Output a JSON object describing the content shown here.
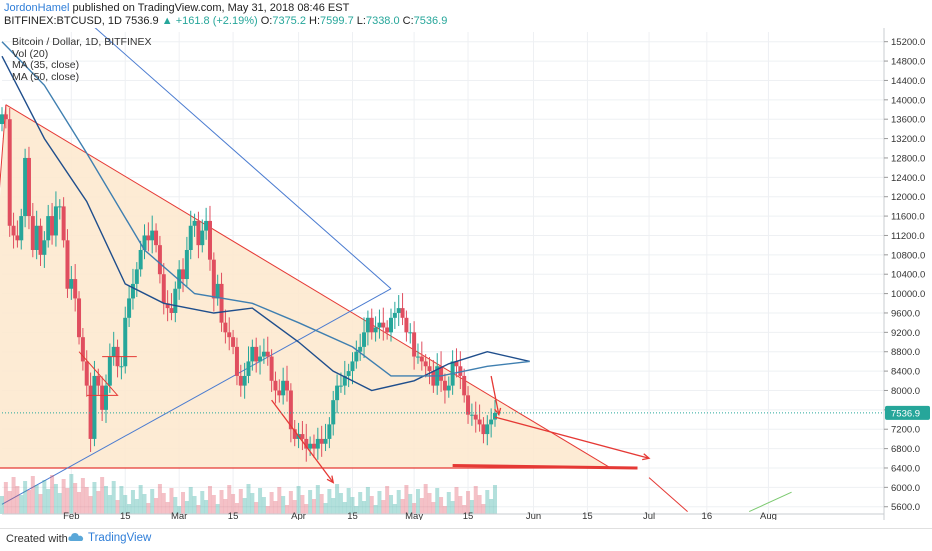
{
  "header": {
    "author": "JordonHamel",
    "published": "published on TradingView.com, May 31, 2018 08:46 EST",
    "symbol": "BITFINEX:BTCUSD, 1D",
    "last": "7536.9",
    "change": "▲ +161.8 (+2.19%)",
    "o_label": "O:",
    "o": "7375.2",
    "h_label": "H:",
    "h": "7599.7",
    "l_label": "L:",
    "l": "7338.0",
    "c_label": "C:",
    "c": "7536.9"
  },
  "legend": {
    "title": "Bitcoin / Dollar, 1D, BITFINEX",
    "vol": "Vol (20)",
    "ma35": "MA (35, close)",
    "ma50": "MA (50, close)"
  },
  "footer": {
    "created": "Created with",
    "brand": "TradingView"
  },
  "colors": {
    "up": "#26a69a",
    "down": "#e04e5f",
    "triangle_fill": "#fde8cd",
    "ma35": "#1f4e8c",
    "ma50": "#3f7fb0",
    "drawing_red": "#e53935",
    "drawing_blue": "#4a7bd0",
    "price_tag": "#26a69a"
  },
  "chart_data": {
    "type": "candlestick",
    "title": "Bitcoin / Dollar, 1D, BITFINEX",
    "yticks": [
      5600,
      6000,
      6400,
      6800,
      7200,
      7600,
      8000,
      8400,
      8800,
      9200,
      9600,
      10000,
      10400,
      10800,
      11200,
      11600,
      12000,
      12400,
      12800,
      13200,
      13600,
      14000,
      14400,
      14800,
      15200
    ],
    "ytick_labels": [
      "5600.0",
      "6000.0",
      "6400.0",
      "6800.0",
      "7200.0",
      "7600.0",
      "8000.0",
      "8400.0",
      "8800.0",
      "9200.0",
      "9600.0",
      "10000.0",
      "10400.0",
      "10800.0",
      "11200.0",
      "11600.0",
      "12000.0",
      "12400.0",
      "12800.0",
      "13200.0",
      "13600.0",
      "14000.0",
      "14400.0",
      "14800.0",
      "15200.0"
    ],
    "ylim": [
      5450,
      15400
    ],
    "xlim": [
      "2018-01-14",
      "2018-08-31"
    ],
    "xticks": [
      {
        "label": "Feb",
        "date": "2018-02-01"
      },
      {
        "label": "15",
        "date": "2018-02-15"
      },
      {
        "label": "Mar",
        "date": "2018-03-01"
      },
      {
        "label": "15",
        "date": "2018-03-15"
      },
      {
        "label": "Apr",
        "date": "2018-04-01"
      },
      {
        "label": "15",
        "date": "2018-04-15"
      },
      {
        "label": "May",
        "date": "2018-05-01"
      },
      {
        "label": "15",
        "date": "2018-05-15"
      },
      {
        "label": "Jun",
        "date": "2018-06-01"
      },
      {
        "label": "15",
        "date": "2018-06-15"
      },
      {
        "label": "Jul",
        "date": "2018-07-01"
      },
      {
        "label": "16",
        "date": "2018-07-16"
      },
      {
        "label": "Aug",
        "date": "2018-08-01"
      }
    ],
    "last_price": 7536.9,
    "last_price_label": "7536.9",
    "candles_start": "2018-01-14",
    "closes": [
      13700,
      13600,
      11400,
      11200,
      11100,
      11600,
      12800,
      11600,
      10900,
      11400,
      10800,
      11100,
      11600,
      11200,
      11800,
      11800,
      11100,
      10100,
      10300,
      9900,
      9100,
      8600,
      8100,
      7000,
      8300,
      8100,
      7600,
      8100,
      8700,
      8900,
      8500,
      8500,
      9500,
      9900,
      10200,
      10500,
      10900,
      11200,
      11100,
      11300,
      11000,
      10400,
      9800,
      9700,
      9600,
      10100,
      10500,
      10300,
      10900,
      11400,
      11500,
      11000,
      11300,
      11500,
      10700,
      9900,
      10200,
      9400,
      9200,
      9100,
      8900,
      8300,
      8100,
      8300,
      8600,
      8900,
      8600,
      8700,
      8800,
      8700,
      8200,
      8000,
      7900,
      8200,
      8000,
      7200,
      7000,
      7100,
      7000,
      6800,
      6900,
      6800,
      7000,
      6900,
      7000,
      7300,
      7800,
      8100,
      8100,
      8300,
      8400,
      8600,
      8800,
      8900,
      9200,
      9500,
      9200,
      9300,
      9400,
      9300,
      9200,
      9500,
      9600,
      9700,
      9500,
      9200,
      9200,
      8700,
      8700,
      8600,
      8500,
      8400,
      8100,
      8500,
      8200,
      8000,
      8100,
      8600,
      8500,
      8300,
      7900,
      7500,
      7500,
      7400,
      7300,
      7100,
      7300,
      7400,
      7537
    ],
    "series": [
      {
        "name": "MA (35, close)",
        "points": [
          [
            "2018-01-14",
            14900
          ],
          [
            "2018-01-25",
            13200
          ],
          [
            "2018-02-05",
            11900
          ],
          [
            "2018-02-15",
            10200
          ],
          [
            "2018-02-25",
            9800
          ],
          [
            "2018-03-10",
            9600
          ],
          [
            "2018-03-20",
            9700
          ],
          [
            "2018-04-01",
            9000
          ],
          [
            "2018-04-10",
            8400
          ],
          [
            "2018-04-20",
            8000
          ],
          [
            "2018-05-01",
            8200
          ],
          [
            "2018-05-10",
            8550
          ],
          [
            "2018-05-20",
            8800
          ],
          [
            "2018-05-31",
            8600
          ]
        ]
      },
      {
        "name": "MA (50, close)",
        "points": [
          [
            "2018-01-14",
            15200
          ],
          [
            "2018-01-25",
            14300
          ],
          [
            "2018-02-05",
            12900
          ],
          [
            "2018-02-20",
            10900
          ],
          [
            "2018-03-05",
            10000
          ],
          [
            "2018-03-20",
            9800
          ],
          [
            "2018-04-01",
            9400
          ],
          [
            "2018-04-15",
            8900
          ],
          [
            "2018-04-25",
            8300
          ],
          [
            "2018-05-08",
            8300
          ],
          [
            "2018-05-20",
            8500
          ],
          [
            "2018-05-31",
            8600
          ]
        ]
      }
    ]
  }
}
